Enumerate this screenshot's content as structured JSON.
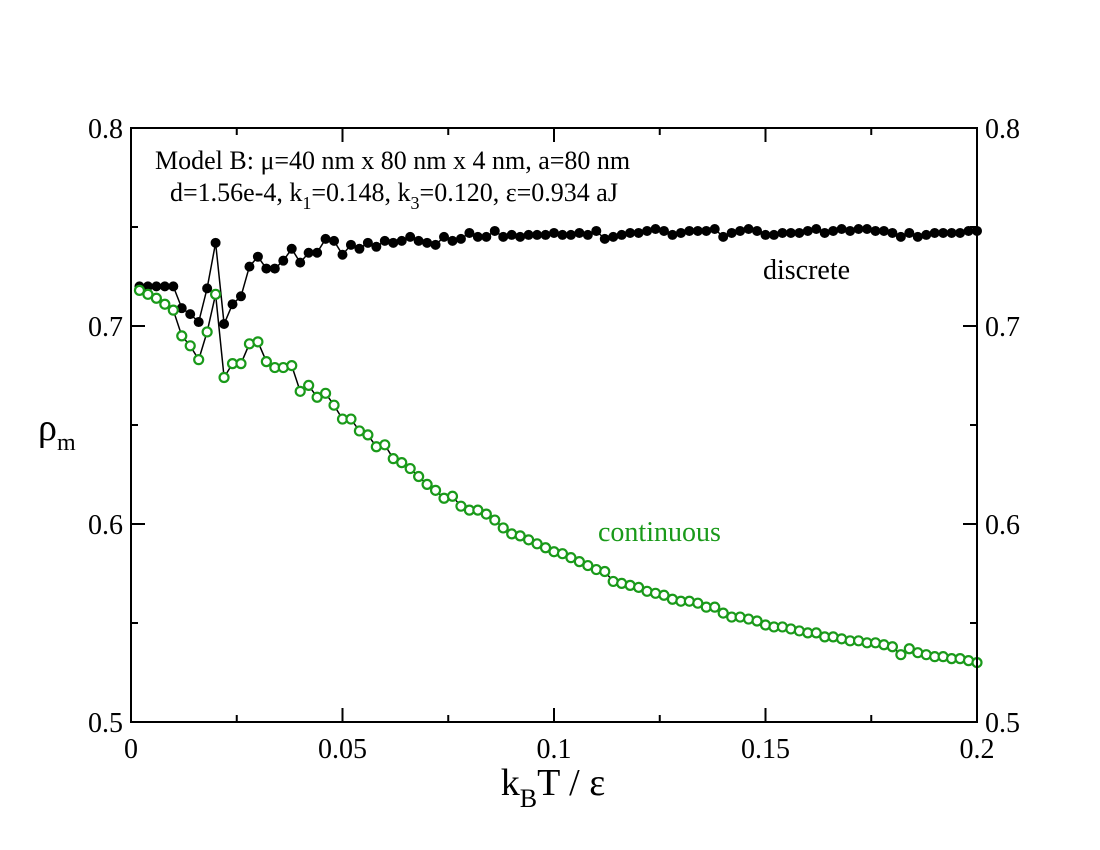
{
  "chart_data": {
    "type": "line",
    "xlabel": {
      "base": "k",
      "sub": "B",
      "rest": "T / ε"
    },
    "ylabel": {
      "base": "ρ",
      "sub": "m"
    },
    "xlim": [
      0,
      0.2
    ],
    "ylim": [
      0.5,
      0.8
    ],
    "x_ticks": [
      0,
      0.05,
      0.1,
      0.15,
      0.2
    ],
    "x_tick_labels": [
      "0",
      "0.05",
      "0.1",
      "0.15",
      "0.2"
    ],
    "y_ticks": [
      0.5,
      0.6,
      0.7,
      0.8
    ],
    "y_tick_labels": [
      "0.5",
      "0.6",
      "0.7",
      "0.8"
    ],
    "right_y_tick_labels": [
      "0.5",
      "0.6",
      "0.7",
      "0.8"
    ],
    "grid": false,
    "annotation": {
      "line1": "Model B: μ=40 nm x 80 nm x 4 nm, a=80 nm",
      "line2_parts": [
        {
          "text": "d=1.56e-4,  k"
        },
        {
          "sub": "1"
        },
        {
          "text": "=0.148,  k"
        },
        {
          "sub": "3"
        },
        {
          "text": "=0.120, ε=0.934 aJ"
        }
      ]
    },
    "series": [
      {
        "name": "discrete",
        "color": "#000000",
        "marker": "filled-circle",
        "x": [
          0.002,
          0.004,
          0.006,
          0.008,
          0.01,
          0.012,
          0.014,
          0.016,
          0.018,
          0.02,
          0.022,
          0.024,
          0.026,
          0.028,
          0.03,
          0.032,
          0.034,
          0.036,
          0.038,
          0.04,
          0.042,
          0.044,
          0.046,
          0.048,
          0.05,
          0.052,
          0.054,
          0.056,
          0.058,
          0.06,
          0.062,
          0.064,
          0.066,
          0.068,
          0.07,
          0.072,
          0.074,
          0.076,
          0.078,
          0.08,
          0.082,
          0.084,
          0.086,
          0.088,
          0.09,
          0.092,
          0.094,
          0.096,
          0.098,
          0.1,
          0.102,
          0.104,
          0.106,
          0.108,
          0.11,
          0.112,
          0.114,
          0.116,
          0.118,
          0.12,
          0.122,
          0.124,
          0.126,
          0.128,
          0.13,
          0.132,
          0.134,
          0.136,
          0.138,
          0.14,
          0.142,
          0.144,
          0.146,
          0.148,
          0.15,
          0.152,
          0.154,
          0.156,
          0.158,
          0.16,
          0.162,
          0.164,
          0.166,
          0.168,
          0.17,
          0.172,
          0.174,
          0.176,
          0.178,
          0.18,
          0.182,
          0.184,
          0.186,
          0.188,
          0.19,
          0.192,
          0.194,
          0.196,
          0.198,
          0.2
        ],
        "y": [
          0.72,
          0.72,
          0.72,
          0.72,
          0.72,
          0.709,
          0.706,
          0.702,
          0.719,
          0.742,
          0.701,
          0.711,
          0.715,
          0.73,
          0.735,
          0.729,
          0.729,
          0.733,
          0.739,
          0.732,
          0.737,
          0.737,
          0.744,
          0.743,
          0.736,
          0.741,
          0.739,
          0.742,
          0.74,
          0.743,
          0.742,
          0.743,
          0.745,
          0.743,
          0.742,
          0.741,
          0.745,
          0.743,
          0.744,
          0.747,
          0.745,
          0.745,
          0.748,
          0.745,
          0.746,
          0.745,
          0.746,
          0.746,
          0.746,
          0.747,
          0.746,
          0.746,
          0.747,
          0.746,
          0.748,
          0.744,
          0.745,
          0.746,
          0.747,
          0.747,
          0.748,
          0.749,
          0.748,
          0.746,
          0.747,
          0.748,
          0.748,
          0.748,
          0.749,
          0.745,
          0.747,
          0.748,
          0.749,
          0.748,
          0.746,
          0.746,
          0.747,
          0.747,
          0.747,
          0.748,
          0.749,
          0.747,
          0.748,
          0.749,
          0.748,
          0.749,
          0.749,
          0.748,
          0.748,
          0.747,
          0.745,
          0.747,
          0.745,
          0.746,
          0.747,
          0.747,
          0.747,
          0.747,
          0.748,
          0.748
        ]
      },
      {
        "name": "continuous",
        "color": "#1a9a1a",
        "marker": "open-circle",
        "x": [
          0.002,
          0.004,
          0.006,
          0.008,
          0.01,
          0.012,
          0.014,
          0.016,
          0.018,
          0.02,
          0.022,
          0.024,
          0.026,
          0.028,
          0.03,
          0.032,
          0.034,
          0.036,
          0.038,
          0.04,
          0.042,
          0.044,
          0.046,
          0.048,
          0.05,
          0.052,
          0.054,
          0.056,
          0.058,
          0.06,
          0.062,
          0.064,
          0.066,
          0.068,
          0.07,
          0.072,
          0.074,
          0.076,
          0.078,
          0.08,
          0.082,
          0.084,
          0.086,
          0.088,
          0.09,
          0.092,
          0.094,
          0.096,
          0.098,
          0.1,
          0.102,
          0.104,
          0.106,
          0.108,
          0.11,
          0.112,
          0.114,
          0.116,
          0.118,
          0.12,
          0.122,
          0.124,
          0.126,
          0.128,
          0.13,
          0.132,
          0.134,
          0.136,
          0.138,
          0.14,
          0.142,
          0.144,
          0.146,
          0.148,
          0.15,
          0.152,
          0.154,
          0.156,
          0.158,
          0.16,
          0.162,
          0.164,
          0.166,
          0.168,
          0.17,
          0.172,
          0.174,
          0.176,
          0.178,
          0.18,
          0.182,
          0.184,
          0.186,
          0.188,
          0.19,
          0.192,
          0.194,
          0.196,
          0.198,
          0.2
        ],
        "y": [
          0.718,
          0.716,
          0.714,
          0.711,
          0.708,
          0.695,
          0.69,
          0.683,
          0.697,
          0.716,
          0.674,
          0.681,
          0.681,
          0.691,
          0.692,
          0.682,
          0.679,
          0.679,
          0.68,
          0.667,
          0.67,
          0.664,
          0.666,
          0.66,
          0.653,
          0.653,
          0.647,
          0.645,
          0.639,
          0.64,
          0.633,
          0.631,
          0.628,
          0.624,
          0.62,
          0.617,
          0.613,
          0.614,
          0.609,
          0.607,
          0.607,
          0.605,
          0.602,
          0.598,
          0.595,
          0.594,
          0.592,
          0.59,
          0.588,
          0.586,
          0.585,
          0.583,
          0.581,
          0.579,
          0.577,
          0.576,
          0.571,
          0.57,
          0.569,
          0.568,
          0.566,
          0.565,
          0.564,
          0.562,
          0.561,
          0.561,
          0.56,
          0.558,
          0.558,
          0.555,
          0.553,
          0.553,
          0.552,
          0.551,
          0.549,
          0.548,
          0.548,
          0.547,
          0.546,
          0.545,
          0.545,
          0.543,
          0.543,
          0.542,
          0.541,
          0.541,
          0.54,
          0.54,
          0.539,
          0.538,
          0.534,
          0.537,
          0.535,
          0.534,
          0.533,
          0.533,
          0.532,
          0.532,
          0.531,
          0.53
        ]
      }
    ]
  }
}
